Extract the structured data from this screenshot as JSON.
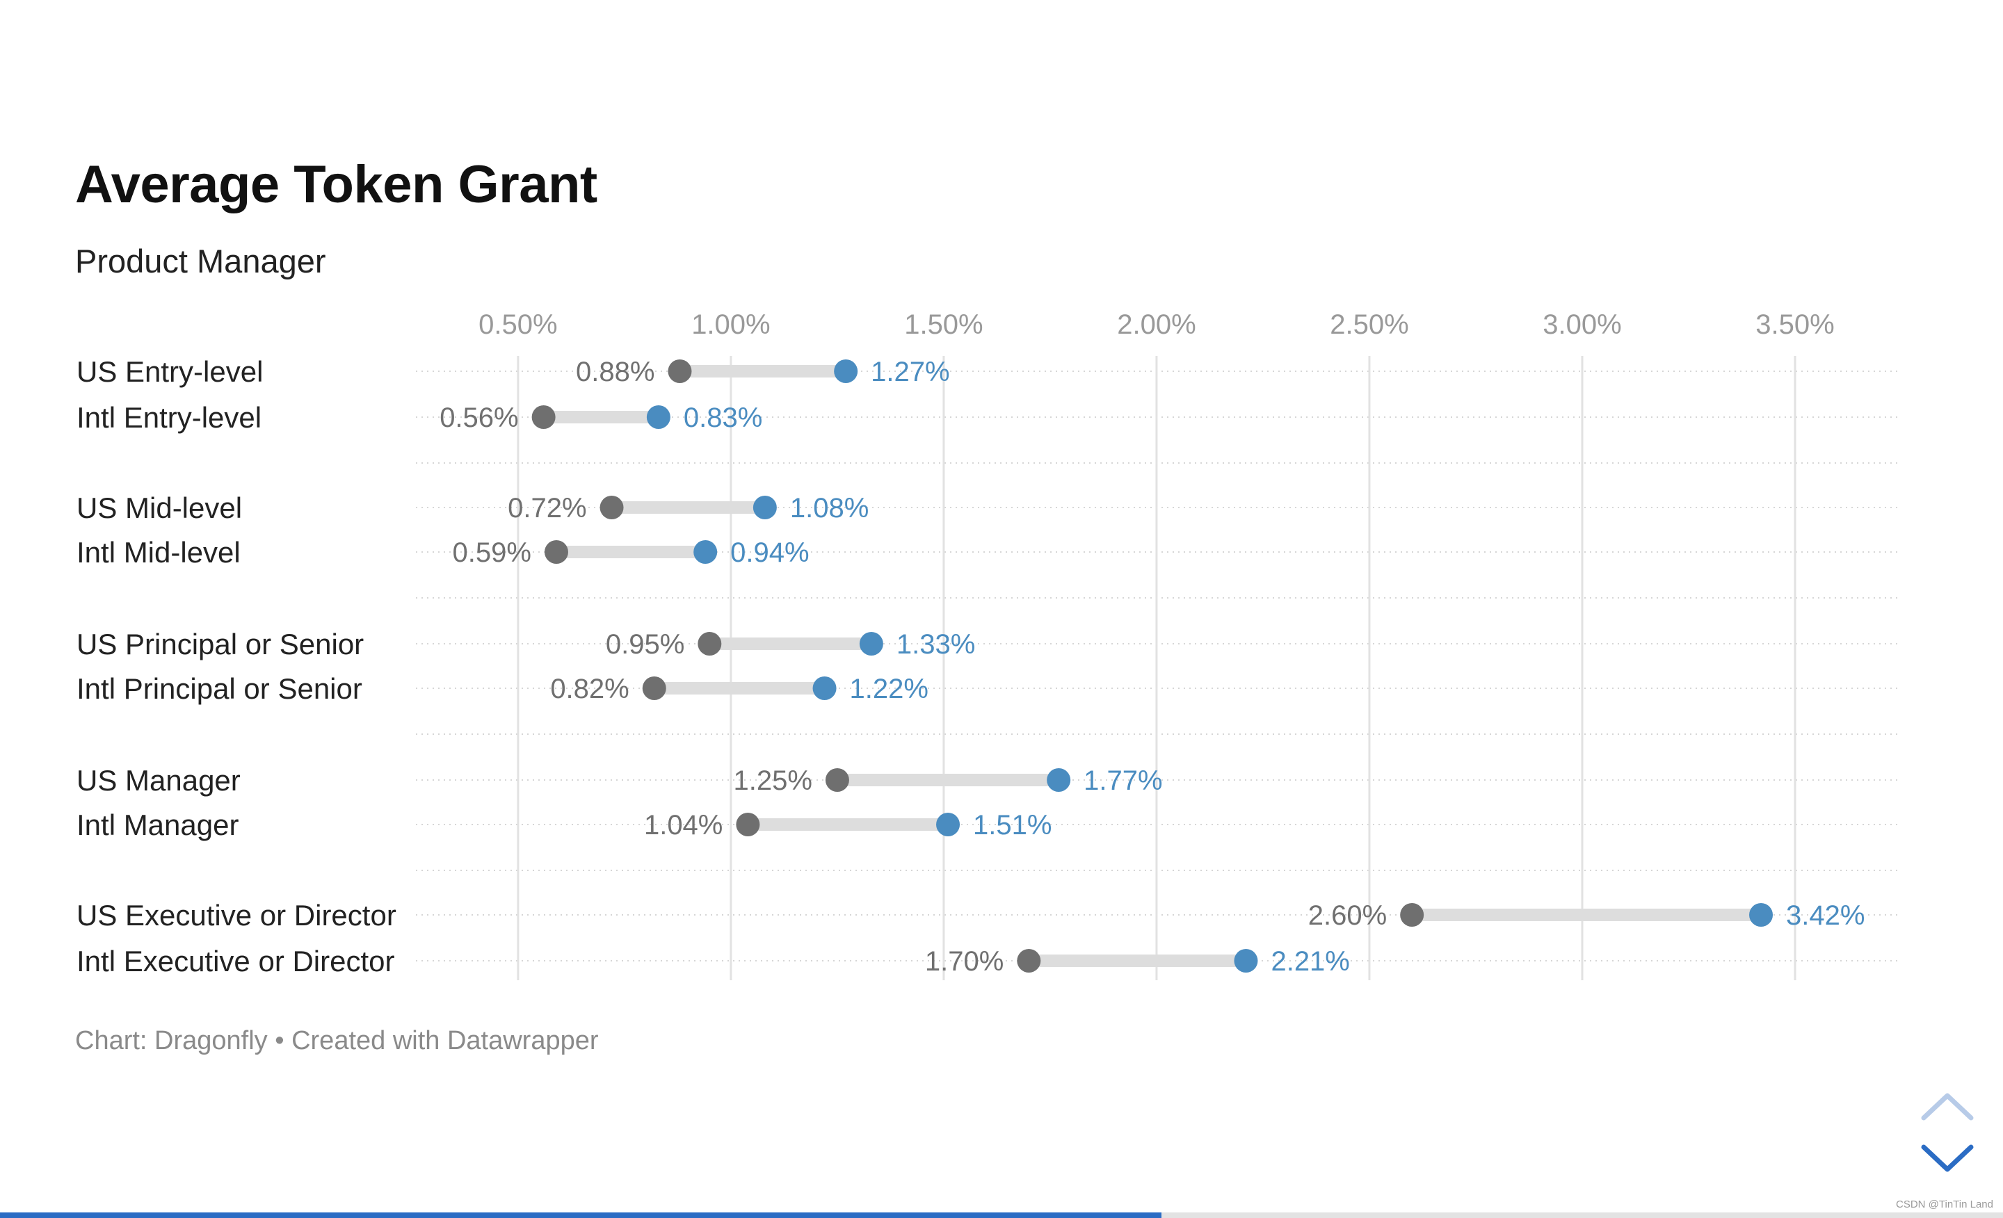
{
  "title": "Average Token Grant",
  "subtitle": "Product Manager",
  "source_note": "Chart: Dragonfly • Created with Datawrapper",
  "watermark": "CSDN @TinTin Land",
  "colors": {
    "low_dot": "#6f6f6f",
    "high_dot": "#4a8cc0",
    "connector": "#dddddd",
    "low_label": "#707070",
    "high_label": "#4a8cc0",
    "row_label": "#222222",
    "tick_label": "#999999",
    "progress": "#2b6cc4",
    "nav_up": "#b7cbe8",
    "nav_down": "#2b6cc4"
  },
  "navigation": {
    "up_icon": "chevron-up-icon",
    "down_icon": "chevron-down-icon",
    "progress_fraction": 0.58
  },
  "chart_data": {
    "type": "dot-range",
    "xlim": [
      0.26,
      3.75
    ],
    "x_ticks": [
      0.5,
      1.0,
      1.5,
      2.0,
      2.5,
      3.0,
      3.5
    ],
    "x_tick_labels": [
      "0.50%",
      "1.00%",
      "1.50%",
      "2.00%",
      "2.50%",
      "3.00%",
      "3.50%"
    ],
    "grid": true,
    "axis_position": "top",
    "rows": [
      {
        "label": "US Entry-level",
        "low": 0.88,
        "low_label": "0.88%",
        "high": 1.27,
        "high_label": "1.27%"
      },
      {
        "label": "Intl Entry-level",
        "low": 0.56,
        "low_label": "0.56%",
        "high": 0.83,
        "high_label": "0.83%"
      },
      {
        "label": "US Mid-level",
        "low": 0.72,
        "low_label": "0.72%",
        "high": 1.08,
        "high_label": "1.08%"
      },
      {
        "label": "Intl Mid-level",
        "low": 0.59,
        "low_label": "0.59%",
        "high": 0.94,
        "high_label": "0.94%"
      },
      {
        "label": "US Principal or Senior",
        "low": 0.95,
        "low_label": "0.95%",
        "high": 1.33,
        "high_label": "1.33%"
      },
      {
        "label": "Intl Principal or Senior",
        "low": 0.82,
        "low_label": "0.82%",
        "high": 1.22,
        "high_label": "1.22%"
      },
      {
        "label": "US Manager",
        "low": 1.25,
        "low_label": "1.25%",
        "high": 1.77,
        "high_label": "1.77%"
      },
      {
        "label": "Intl Manager",
        "low": 1.04,
        "low_label": "1.04%",
        "high": 1.51,
        "high_label": "1.51%"
      },
      {
        "label": "US Executive or Director",
        "low": 2.6,
        "low_label": "2.60%",
        "high": 3.42,
        "high_label": "3.42%"
      },
      {
        "label": "Intl Executive or Director",
        "low": 1.7,
        "low_label": "1.70%",
        "high": 2.21,
        "high_label": "2.21%"
      }
    ]
  }
}
